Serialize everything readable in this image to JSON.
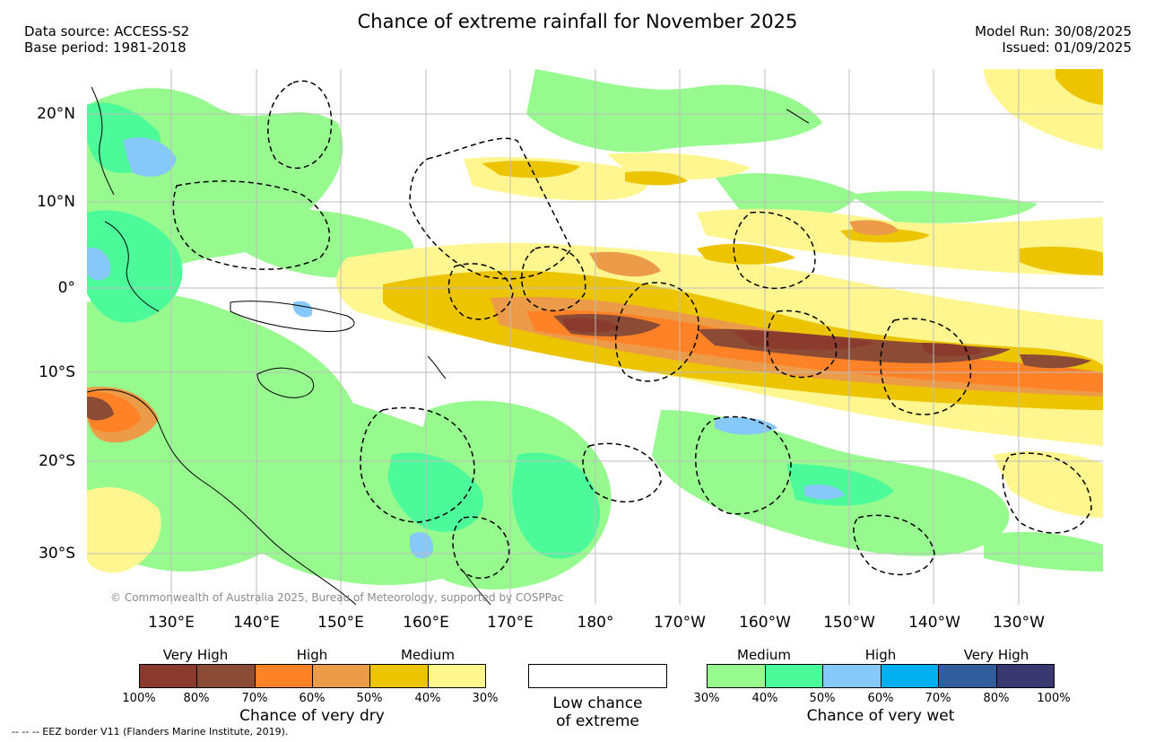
{
  "title": "Chance of extreme rainfall for November 2025",
  "header_left": [
    "Data source: ACCESS-S2",
    "Base period: 1981-2018"
  ],
  "header_right": [
    "Model Run: 30/08/2025",
    "Issued: 01/09/2025"
  ],
  "map": {
    "lat_labels": [
      "20°N",
      "10°N",
      "0°",
      "10°S",
      "20°S",
      "30°S"
    ],
    "lon_labels": [
      "130°E",
      "140°E",
      "150°E",
      "160°E",
      "170°E",
      "180°",
      "170°W",
      "160°W",
      "150°W",
      "140°W",
      "130°W"
    ],
    "copyright": "© Commonwealth of Australia 2025, Bureau of Meteorology, supported by COSPPac"
  },
  "legend": {
    "dry": {
      "categories": [
        "Very High",
        "High",
        "Medium"
      ],
      "colors": [
        "#8b3a2e",
        "#8c4b35",
        "#ff8226",
        "#ec9b48",
        "#ecc500",
        "#fff68f"
      ],
      "ticks": [
        "100%",
        "80%",
        "70%",
        "60%",
        "50%",
        "40%",
        "30%"
      ],
      "caption": "Chance of very dry"
    },
    "low": {
      "line1": "Low chance",
      "line2": "of extreme",
      "color": "#ffffff"
    },
    "wet": {
      "categories": [
        "Medium",
        "High",
        "Very High"
      ],
      "colors": [
        "#96fa8e",
        "#4dfa9a",
        "#86c8fa",
        "#00afef",
        "#325d9c",
        "#3a3870"
      ],
      "ticks": [
        "30%",
        "40%",
        "50%",
        "60%",
        "70%",
        "80%",
        "100%"
      ],
      "caption": "Chance of very wet"
    }
  },
  "footnote": "-- -- -- EEZ border V11 (Flanders Marine Institute, 2019)."
}
